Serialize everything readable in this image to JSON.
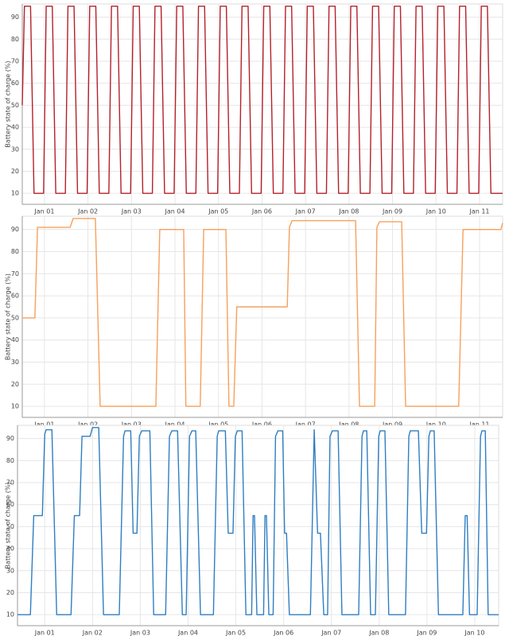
{
  "chart_data": [
    {
      "type": "line",
      "ylabel": "Battery state of charge (%)",
      "x": [
        0.49,
        0.54,
        0.68,
        0.76,
        0.98,
        1.04,
        1.18,
        1.26,
        1.48,
        1.54,
        1.68,
        1.76,
        1.98,
        2.04,
        2.18,
        2.26,
        2.48,
        2.54,
        2.68,
        2.76,
        2.98,
        3.04,
        3.18,
        3.26,
        3.48,
        3.54,
        3.68,
        3.76,
        3.98,
        4.04,
        4.18,
        4.26,
        4.48,
        4.54,
        4.68,
        4.76,
        4.98,
        5.04,
        5.18,
        5.26,
        5.48,
        5.54,
        5.68,
        5.76,
        5.98,
        6.04,
        6.18,
        6.26,
        6.48,
        6.54,
        6.68,
        6.76,
        6.98,
        7.04,
        7.18,
        7.26,
        7.48,
        7.54,
        7.68,
        7.76,
        7.98,
        8.04,
        8.18,
        8.26,
        8.48,
        8.54,
        8.68,
        8.76,
        8.98,
        9.04,
        9.18,
        9.26,
        9.48,
        9.54,
        9.68,
        9.76,
        9.98,
        10.04,
        10.18,
        10.26,
        10.48,
        10.54,
        10.68,
        10.76,
        10.98,
        11.04,
        11.18,
        11.26,
        11.53
      ],
      "series": [
        {
          "color": "#b5202a",
          "values": [
            50,
            95,
            95,
            10,
            10,
            95,
            95,
            10,
            10,
            95,
            95,
            10,
            10,
            95,
            95,
            10,
            10,
            95,
            95,
            10,
            10,
            95,
            95,
            10,
            10,
            95,
            95,
            10,
            10,
            95,
            95,
            10,
            10,
            95,
            95,
            10,
            10,
            95,
            95,
            10,
            10,
            95,
            95,
            10,
            10,
            95,
            95,
            10,
            10,
            95,
            95,
            10,
            10,
            95,
            95,
            10,
            10,
            95,
            95,
            10,
            10,
            95,
            95,
            10,
            10,
            95,
            95,
            10,
            10,
            95,
            95,
            10,
            10,
            95,
            95,
            10,
            10,
            95,
            95,
            10,
            10,
            95,
            95,
            10,
            10,
            95,
            95,
            10,
            10
          ]
        }
      ],
      "xlim": [
        0.49,
        11.53
      ],
      "ylim": [
        5,
        96
      ],
      "yticks": [
        10,
        20,
        30,
        40,
        50,
        60,
        70,
        80,
        90
      ],
      "xticks": [
        {
          "value": 1,
          "label": "Jan 01"
        },
        {
          "value": 2,
          "label": "Jan 02"
        },
        {
          "value": 3,
          "label": "Jan 03"
        },
        {
          "value": 4,
          "label": "Jan 04"
        },
        {
          "value": 5,
          "label": "Jan 05"
        },
        {
          "value": 6,
          "label": "Jan 06"
        },
        {
          "value": 7,
          "label": "Jan 07"
        },
        {
          "value": 8,
          "label": "Jan 08"
        },
        {
          "value": 9,
          "label": "Jan 09"
        },
        {
          "value": 10,
          "label": "Jan 10"
        },
        {
          "value": 11,
          "label": "Jan 11"
        }
      ],
      "grid": true
    },
    {
      "type": "line",
      "ylabel": "Battery state of charge (%)",
      "x": [
        0.49,
        0.78,
        0.84,
        1.59,
        1.66,
        2.17,
        2.28,
        3.56,
        3.65,
        4.2,
        4.25,
        4.58,
        4.66,
        5.17,
        5.24,
        5.35,
        5.42,
        6.58,
        6.63,
        6.69,
        8.15,
        8.24,
        8.59,
        8.64,
        8.7,
        9.21,
        9.3,
        10.52,
        10.62,
        11.49,
        11.53
      ],
      "series": [
        {
          "color": "#f7a05c",
          "values": [
            50,
            50,
            91,
            91,
            95,
            95,
            10,
            10,
            90,
            90,
            10,
            10,
            90,
            90,
            10,
            10,
            55,
            55,
            91,
            94,
            94,
            10,
            10,
            91,
            93.5,
            93.5,
            10,
            10,
            90,
            90,
            93
          ]
        }
      ],
      "xlim": [
        0.49,
        11.53
      ],
      "ylim": [
        5,
        96
      ],
      "yticks": [
        10,
        20,
        30,
        40,
        50,
        60,
        70,
        80,
        90
      ],
      "xticks": [
        {
          "value": 1,
          "label": "Jan 01"
        },
        {
          "value": 2,
          "label": "Jan 02"
        },
        {
          "value": 3,
          "label": "Jan 03"
        },
        {
          "value": 4,
          "label": "Jan 04"
        },
        {
          "value": 5,
          "label": "Jan 05"
        },
        {
          "value": 6,
          "label": "Jan 06"
        },
        {
          "value": 7,
          "label": "Jan 07"
        },
        {
          "value": 8,
          "label": "Jan 08"
        },
        {
          "value": 9,
          "label": "Jan 09"
        },
        {
          "value": 10,
          "label": "Jan 10"
        },
        {
          "value": 11,
          "label": "Jan 11"
        }
      ],
      "grid": true
    },
    {
      "type": "line",
      "ylabel": "Battery state of charge (%)",
      "x": [
        0.43,
        0.7,
        0.77,
        0.95,
        1.0,
        1.03,
        1.15,
        1.25,
        1.55,
        1.62,
        1.73,
        1.78,
        1.95,
        2.0,
        2.13,
        2.23,
        2.56,
        2.65,
        2.68,
        2.8,
        2.85,
        2.93,
        2.98,
        3.03,
        3.2,
        3.28,
        3.53,
        3.61,
        3.66,
        3.78,
        3.88,
        3.96,
        4.03,
        4.08,
        4.16,
        4.26,
        4.53,
        4.61,
        4.64,
        4.78,
        4.84,
        4.94,
        4.99,
        5.03,
        5.13,
        5.21,
        5.33,
        5.36,
        5.39,
        5.44,
        5.58,
        5.61,
        5.64,
        5.69,
        5.78,
        5.83,
        5.88,
        5.98,
        6.02,
        6.06,
        6.12,
        6.56,
        6.64,
        6.71,
        6.77,
        6.84,
        6.92,
        6.97,
        7.02,
        7.14,
        7.22,
        7.57,
        7.64,
        7.67,
        7.74,
        7.82,
        7.92,
        7.99,
        8.02,
        8.12,
        8.2,
        8.55,
        8.62,
        8.65,
        8.82,
        8.89,
        8.99,
        9.04,
        9.07,
        9.15,
        9.24,
        9.75,
        9.8,
        9.84,
        9.89,
        10.05,
        10.12,
        10.15,
        10.22,
        10.28,
        10.5
      ],
      "series": [
        {
          "color": "#2f7ec2",
          "values": [
            10,
            10,
            55,
            55,
            92,
            94,
            94,
            10,
            10,
            55,
            55,
            91,
            91,
            95,
            95,
            10,
            10,
            91,
            93.5,
            93.5,
            47,
            47,
            91,
            93.5,
            93.5,
            10,
            10,
            91,
            93.5,
            93.5,
            10,
            10,
            91,
            93.5,
            93.5,
            10,
            10,
            91,
            93.5,
            93.5,
            47,
            47,
            91,
            93.5,
            93.5,
            10,
            10,
            55,
            55,
            10,
            10,
            55,
            55,
            10,
            10,
            91,
            93.5,
            93.5,
            47,
            47,
            10,
            10,
            94,
            47,
            47,
            10,
            10,
            91,
            93.5,
            93.5,
            10,
            10,
            91,
            93.5,
            93.5,
            10,
            10,
            91,
            93.5,
            93.5,
            10,
            10,
            91,
            93.5,
            93.5,
            47,
            47,
            91,
            93.5,
            93.5,
            10,
            10,
            55,
            55,
            10,
            10,
            91,
            93.5,
            93.5,
            10,
            10
          ]
        }
      ],
      "xlim": [
        0.43,
        10.5
      ],
      "ylim": [
        5,
        96
      ],
      "yticks": [
        10,
        20,
        30,
        40,
        50,
        60,
        70,
        80,
        90
      ],
      "xticks": [
        {
          "value": 1,
          "label": "Jan 01"
        },
        {
          "value": 2,
          "label": "Jan 02"
        },
        {
          "value": 3,
          "label": "Jan 03"
        },
        {
          "value": 4,
          "label": "Jan 04"
        },
        {
          "value": 5,
          "label": "Jan 05"
        },
        {
          "value": 6,
          "label": "Jan 06"
        },
        {
          "value": 7,
          "label": "Jan 07"
        },
        {
          "value": 8,
          "label": "Jan 08"
        },
        {
          "value": 9,
          "label": "Jan 09"
        },
        {
          "value": 10,
          "label": "Jan 10"
        }
      ],
      "grid": true
    }
  ]
}
